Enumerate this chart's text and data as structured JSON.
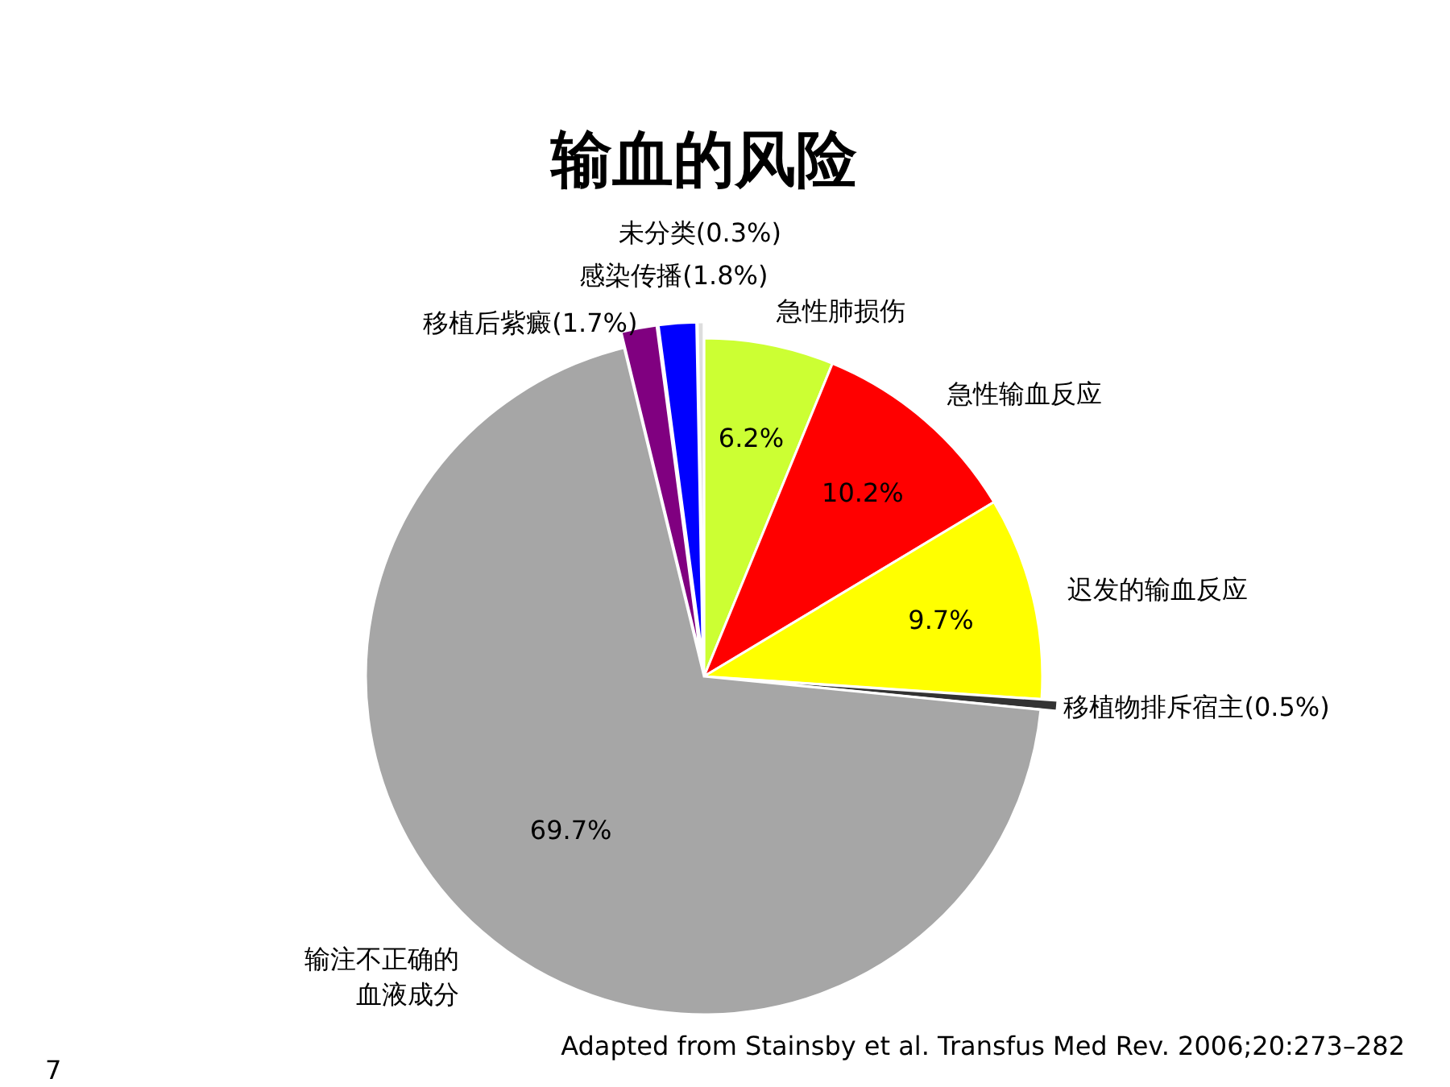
{
  "chart_data": {
    "type": "pie",
    "title": "输血的风险",
    "categories": [
      "急性肺损伤",
      "急性输血反应",
      "迟发的输血反应",
      "移植物排斥宿主",
      "输注不正确的血液成分",
      "移植后紫癜",
      "感染传播",
      "未分类"
    ],
    "values": [
      6.2,
      10.2,
      9.7,
      0.5,
      69.7,
      1.7,
      1.8,
      0.3
    ],
    "colors": [
      "#ccff33",
      "#ff0000",
      "#ffff00",
      "#333333",
      "#a6a6a6",
      "#800080",
      "#0000ff",
      "#dddddd"
    ],
    "value_labels": [
      "6.2%",
      "10.2%",
      "9.7%",
      "(0.5%)",
      "69.7%",
      "(1.7%)",
      "(1.8%)",
      "(0.3%)"
    ],
    "annotations": [
      "Adapted from Stainsby et al. Transfus Med Rev. 2006;20:273–282",
      "7"
    ]
  }
}
